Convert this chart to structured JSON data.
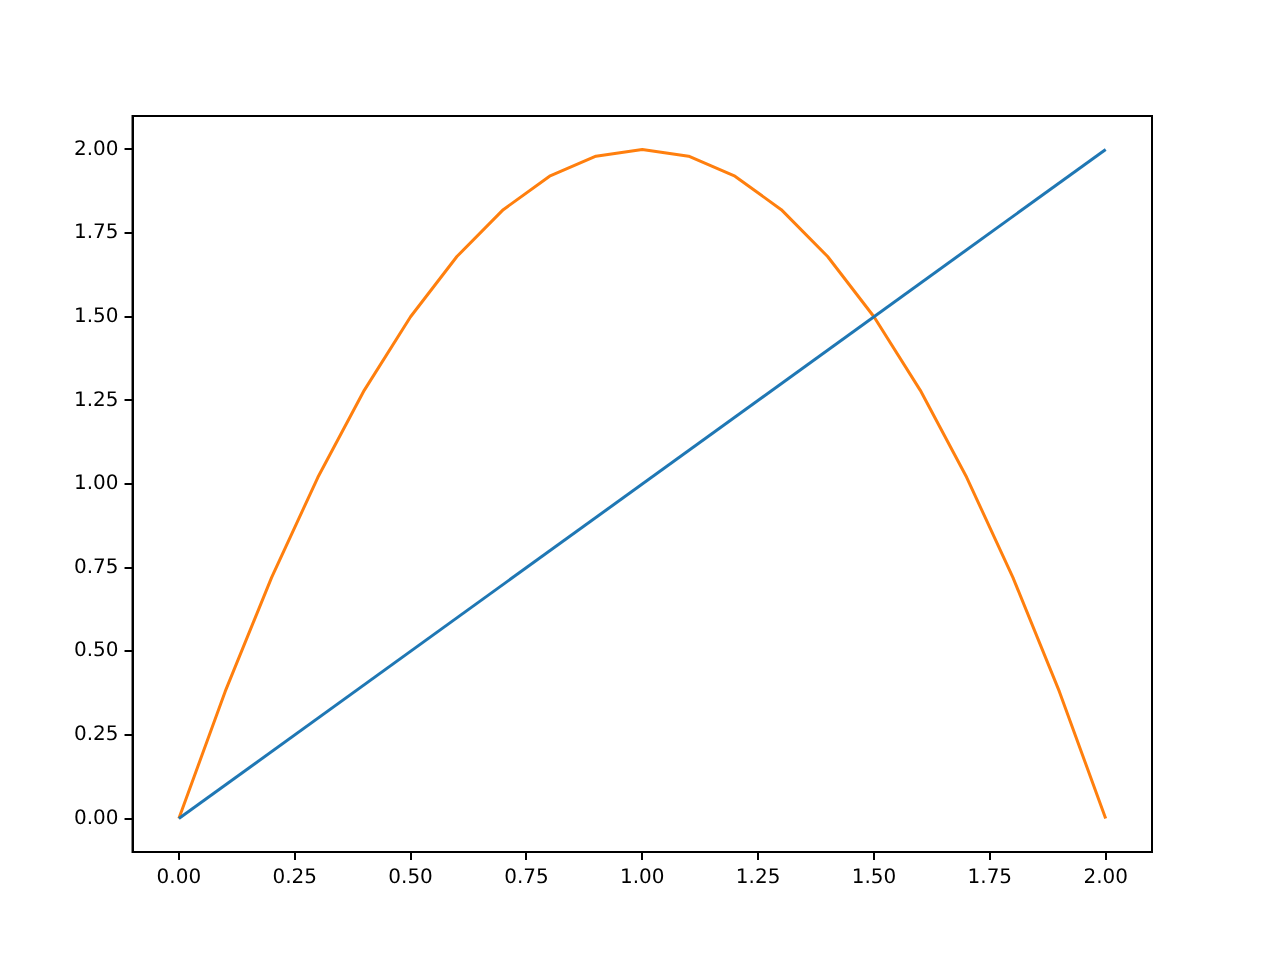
{
  "chart_data": {
    "type": "line",
    "series": [
      {
        "color": "#1f77b4",
        "x": [
          0,
          2
        ],
        "values": [
          0,
          2
        ]
      },
      {
        "color": "#ff7f0e",
        "x": [
          0,
          0.1,
          0.2,
          0.3,
          0.4,
          0.5,
          0.6,
          0.7,
          0.8,
          0.9,
          1,
          1.1,
          1.2,
          1.3,
          1.4,
          1.5,
          1.6,
          1.7,
          1.8,
          1.9,
          2
        ],
        "values": [
          0,
          0.38,
          0.72,
          1.02,
          1.28,
          1.5,
          1.68,
          1.82,
          1.92,
          1.98,
          2,
          1.98,
          1.92,
          1.82,
          1.68,
          1.5,
          1.28,
          1.02,
          0.72,
          0.38,
          0
        ]
      }
    ],
    "xlim": [
      -0.1,
      2.1
    ],
    "ylim": [
      -0.1,
      2.1
    ],
    "xticks": [
      {
        "value": 0,
        "label": "0.00"
      },
      0.25,
      {
        "value": 0.5,
        "label": "0.50"
      },
      0.75,
      {
        "value": 1,
        "label": "1.00"
      },
      1.25,
      {
        "value": 1.5,
        "label": "1.50"
      },
      1.75,
      {
        "value": 2,
        "label": "2.00"
      }
    ],
    "yticks": [
      {
        "value": 0,
        "label": "0.00"
      },
      0.25,
      {
        "value": 0.5,
        "label": "0.50"
      },
      0.75,
      {
        "value": 1,
        "label": "1.00"
      },
      1.25,
      {
        "value": 1.5,
        "label": "1.50"
      },
      1.75,
      {
        "value": 2,
        "label": "2.00"
      }
    ],
    "grid": false,
    "legend": false
  }
}
